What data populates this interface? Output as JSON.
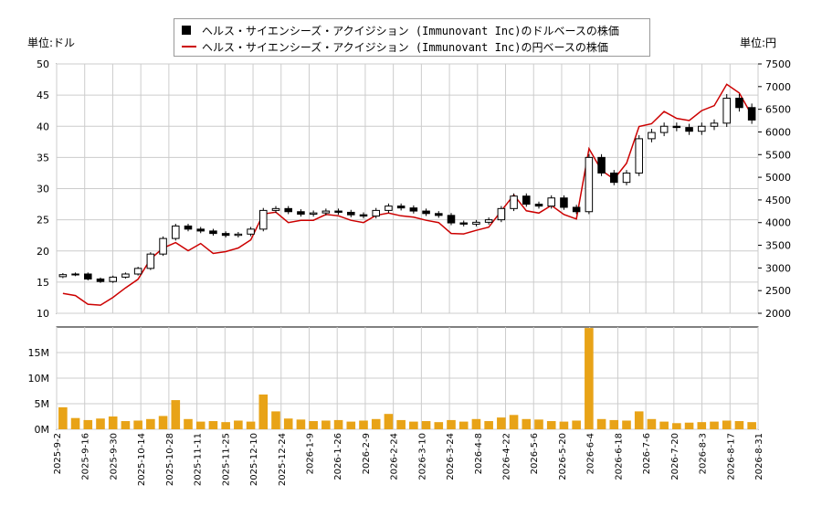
{
  "legend": {
    "usd_label": "ヘルス・サイエンシーズ・アクイジション (Immunovant Inc)のドルベースの株価",
    "jpy_label": "ヘルス・サイエンシーズ・アクイジション (Immunovant Inc)の円ベースの株価"
  },
  "axes": {
    "left_unit": "単位:ドル",
    "right_unit": "単位:円"
  },
  "colors": {
    "candles": "#000000",
    "jpy_line": "#cc0000",
    "volume": "#e8a317",
    "grid": "#cccccc"
  },
  "chart_data": [
    {
      "type": "line",
      "title": "",
      "grid": true,
      "legend_position": "top-center",
      "ylim_left": [
        10,
        50
      ],
      "ylim_right": [
        2000,
        7500
      ],
      "yticks_left": [
        10,
        15,
        20,
        25,
        30,
        35,
        40,
        45,
        50
      ],
      "yticks_right": [
        2000,
        2500,
        3000,
        3500,
        4000,
        4500,
        5000,
        5500,
        6000,
        6500,
        7000,
        7500
      ],
      "xlabels": [
        "2025-9-2",
        "2025-9-16",
        "2025-9-30",
        "2025-10-14",
        "2025-10-28",
        "2025-11-11",
        "2025-11-25",
        "2025-12-10",
        "2025-12-24",
        "2026-1-9",
        "2026-1-26",
        "2026-2-9",
        "2026-2-24",
        "2026-3-10",
        "2026-3-24",
        "2026-4-8",
        "2026-4-22",
        "2026-5-6",
        "2026-5-20",
        "2026-6-4",
        "2026-6-18",
        "2026-7-6",
        "2026-7-20",
        "2026-8-3",
        "2026-8-17",
        "2026-8-31"
      ],
      "series": [
        {
          "name": "ヘルス・サイエンシーズ・アクイジション (Immunovant Inc)のドルベースの株価",
          "style": "candlestick",
          "axis": "left",
          "close": [
            16.2,
            16.3,
            15.5,
            15.1,
            15.8,
            16.3,
            17.2,
            19.5,
            22.0,
            24.0,
            23.5,
            23.2,
            22.8,
            22.5,
            22.7,
            23.5,
            26.5,
            26.8,
            26.3,
            25.9,
            26.1,
            26.4,
            26.2,
            25.8,
            25.6,
            26.5,
            27.2,
            26.9,
            26.4,
            26.0,
            25.7,
            24.5,
            24.3,
            24.6,
            25.0,
            26.8,
            28.8,
            27.5,
            27.2,
            28.5,
            27.0,
            26.3,
            35.0,
            32.5,
            31.0,
            32.5,
            38.0,
            39.0,
            40.0,
            39.8,
            39.2,
            40.0,
            40.5,
            44.5,
            43.0,
            41.0
          ]
        },
        {
          "name": "ヘルス・サイエンシーズ・アクイジション (Immunovant Inc)の円ベースの株価",
          "axis": "right",
          "values": [
            2440,
            2390,
            2200,
            2180,
            2350,
            2560,
            2750,
            3200,
            3440,
            3560,
            3380,
            3540,
            3320,
            3360,
            3440,
            3620,
            4190,
            4230,
            4000,
            4050,
            4050,
            4180,
            4150,
            4050,
            4000,
            4160,
            4210,
            4150,
            4120,
            4050,
            4000,
            3760,
            3750,
            3830,
            3900,
            4260,
            4610,
            4260,
            4210,
            4380,
            4180,
            4080,
            5630,
            5150,
            4960,
            5310,
            6120,
            6180,
            6450,
            6300,
            6250,
            6470,
            6580,
            7050,
            6860,
            6370
          ]
        }
      ]
    },
    {
      "type": "bar",
      "title": "",
      "grid": true,
      "ylim": [
        0,
        20000000
      ],
      "yticks": [
        "0M",
        "5M",
        "10M",
        "15M"
      ],
      "series": [
        {
          "name": "",
          "values": [
            4.3,
            2.2,
            1.8,
            2.1,
            2.5,
            1.6,
            1.7,
            2.0,
            2.6,
            5.7,
            2.0,
            1.5,
            1.6,
            1.4,
            1.7,
            1.5,
            6.8,
            3.5,
            2.1,
            1.9,
            1.6,
            1.7,
            1.8,
            1.5,
            1.7,
            2.0,
            3.0,
            1.8,
            1.5,
            1.6,
            1.4,
            1.8,
            1.5,
            2.0,
            1.6,
            2.3,
            2.8,
            2.0,
            1.9,
            1.6,
            1.5,
            1.7,
            19.8,
            2.0,
            1.8,
            1.7,
            3.5,
            2.0,
            1.5,
            1.2,
            1.3,
            1.4,
            1.5,
            1.7,
            1.6,
            1.4
          ]
        }
      ]
    }
  ]
}
